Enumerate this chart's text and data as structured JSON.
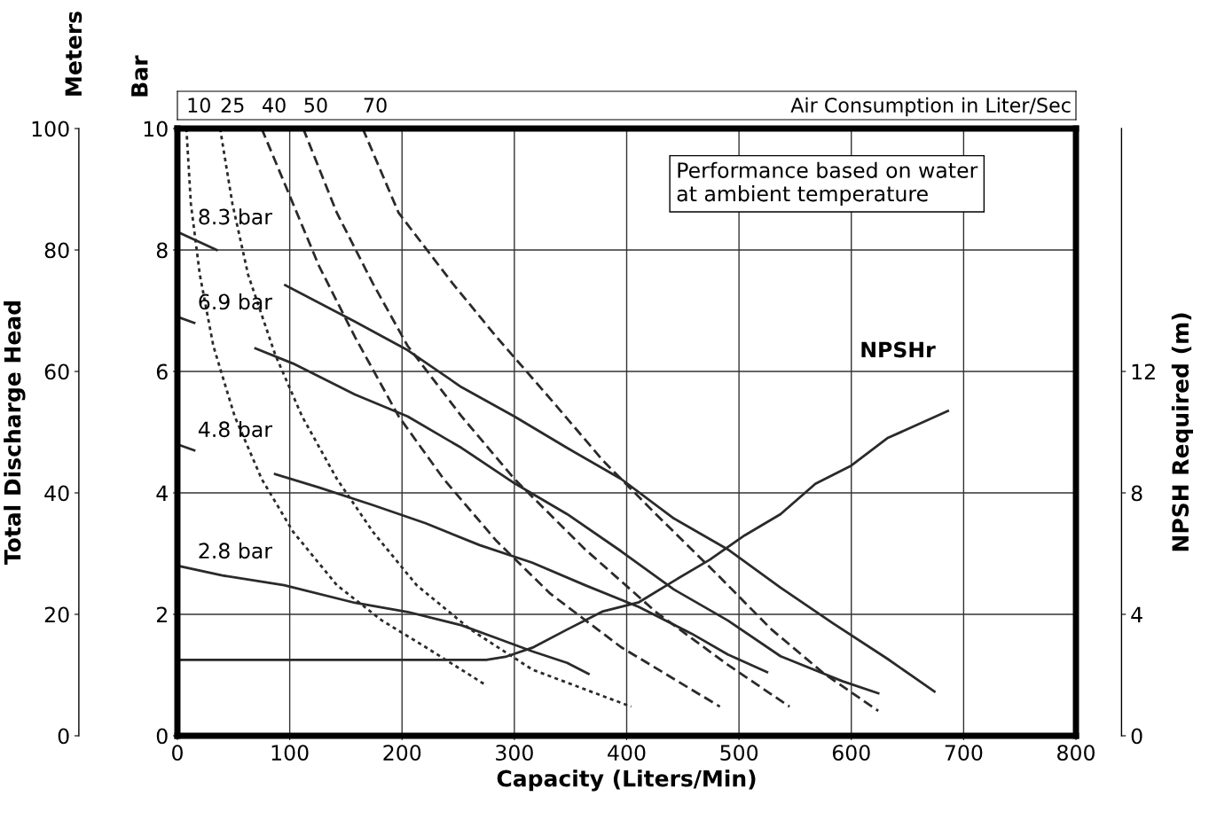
{
  "chart_data": {
    "type": "line",
    "xlabel": "Capacity (Liters/Min)",
    "ylabel": "Total Discharge Head",
    "y2label": "NPSH Required (m)",
    "y3label": "Bar",
    "xlim": [
      0,
      800
    ],
    "xticks": [
      0,
      100,
      200,
      300,
      400,
      500,
      600,
      700,
      800
    ],
    "ylim": [
      0,
      100
    ],
    "yticks": [
      0,
      20,
      40,
      60,
      80,
      100
    ],
    "y3lim": [
      0,
      10
    ],
    "y3ticks": [
      0,
      2,
      4,
      6,
      8,
      10
    ],
    "y2lim": [
      0,
      20
    ],
    "y2ticks": [
      0,
      4,
      8,
      12
    ],
    "grid": true,
    "annotations": [
      "Performance based on water\nat ambient temperature",
      "Air Consumption in Liter/Sec",
      "Meters"
    ],
    "series": [
      {
        "name": "8.3 bar",
        "color": "#2a2a2a",
        "line_style": "solid",
        "x": [
          0,
          35,
          60,
          96,
          158,
          205,
          253,
          300,
          347,
          395,
          442,
          490,
          537,
          584,
          632,
          674
        ],
        "values": [
          83,
          80,
          null,
          74.2,
          68.2,
          63.5,
          57.4,
          52.6,
          47.4,
          42.3,
          35.8,
          30.7,
          24.4,
          18.5,
          12.7,
          7.3
        ]
      },
      {
        "name": "6.9 bar",
        "color": "#2a2a2a",
        "line_style": "solid",
        "x": [
          0,
          15,
          40,
          69.5,
          103,
          158,
          205,
          253,
          300,
          347,
          395,
          442,
          490,
          537,
          592,
          624
        ],
        "values": [
          69,
          68,
          null,
          63.8,
          61.3,
          56.2,
          52.6,
          47.4,
          41.6,
          36.5,
          30.4,
          24.1,
          19.0,
          13.1,
          9.0,
          7.0
        ]
      },
      {
        "name": "4.8 bar",
        "color": "#2a2a2a",
        "line_style": "solid",
        "x": [
          0,
          15,
          50,
          87,
          126,
          174,
          221,
          269,
          316,
          363,
          411,
          458,
          490,
          525
        ],
        "values": [
          48,
          47,
          null,
          43.1,
          40.9,
          38.0,
          35.0,
          31.4,
          28.5,
          24.8,
          21.2,
          16.8,
          13.4,
          10.5
        ]
      },
      {
        "name": "2.8 bar",
        "color": "#2a2a2a",
        "line_style": "solid",
        "x": [
          0,
          40,
          95,
          158,
          205,
          253,
          284,
          316,
          347,
          366
        ],
        "values": [
          28,
          26.4,
          24.8,
          21.9,
          20.4,
          18.2,
          16.1,
          13.9,
          12.0,
          10.2
        ]
      },
      {
        "name": "10",
        "color": "#2a2a2a",
        "line_style": "dotted",
        "x": [
          8,
          12,
          20,
          32,
          51,
          75,
          103,
          142,
          182,
          221,
          275
        ],
        "values": [
          100,
          87.6,
          75.9,
          64.2,
          52.6,
          42.3,
          33.6,
          24.8,
          19.0,
          14.6,
          8.3
        ]
      },
      {
        "name": "25",
        "color": "#2a2a2a",
        "line_style": "dotted",
        "x": [
          38,
          49,
          63,
          87,
          111,
          142,
          174,
          213,
          261,
          316,
          404
        ],
        "values": [
          100,
          87.6,
          75.9,
          62.8,
          52.6,
          42.3,
          33.6,
          24.8,
          17.5,
          10.9,
          4.8
        ]
      },
      {
        "name": "40",
        "color": "#2a2a2a",
        "line_style": "dashed",
        "x": [
          75,
          103,
          126,
          158,
          197,
          237,
          284,
          332,
          395,
          483
        ],
        "values": [
          100,
          87.6,
          77.4,
          65.7,
          52.6,
          42.3,
          32.1,
          23.4,
          14.6,
          4.8
        ]
      },
      {
        "name": "50",
        "color": "#2a2a2a",
        "line_style": "dashed",
        "x": [
          112,
          142,
          174,
          205,
          253,
          300,
          363,
          426,
          490,
          545
        ],
        "values": [
          100,
          86.1,
          74.5,
          64.2,
          52.6,
          42.3,
          30.7,
          20.4,
          11.7,
          4.8
        ]
      },
      {
        "name": "70",
        "color": "#2a2a2a",
        "line_style": "dashed",
        "x": [
          165,
          197,
          245,
          284,
          332,
          379,
          426,
          482,
          529,
          576,
          624
        ],
        "values": [
          100,
          86.1,
          74.5,
          65.7,
          55.5,
          45.3,
          36.5,
          26.3,
          17.5,
          10.2,
          4.1
        ]
      },
      {
        "name": "NPSHr",
        "color": "#2a2a2a",
        "line_style": "solid",
        "axis": "y2",
        "x": [
          0,
          275,
          292,
          316,
          347,
          379,
          411,
          442,
          474,
          505,
          537,
          568,
          600,
          632,
          686
        ],
        "values": [
          2.5,
          2.5,
          2.6,
          2.9,
          3.5,
          4.1,
          4.4,
          5.1,
          5.8,
          6.6,
          7.3,
          8.3,
          8.9,
          9.8,
          10.7
        ]
      }
    ]
  }
}
